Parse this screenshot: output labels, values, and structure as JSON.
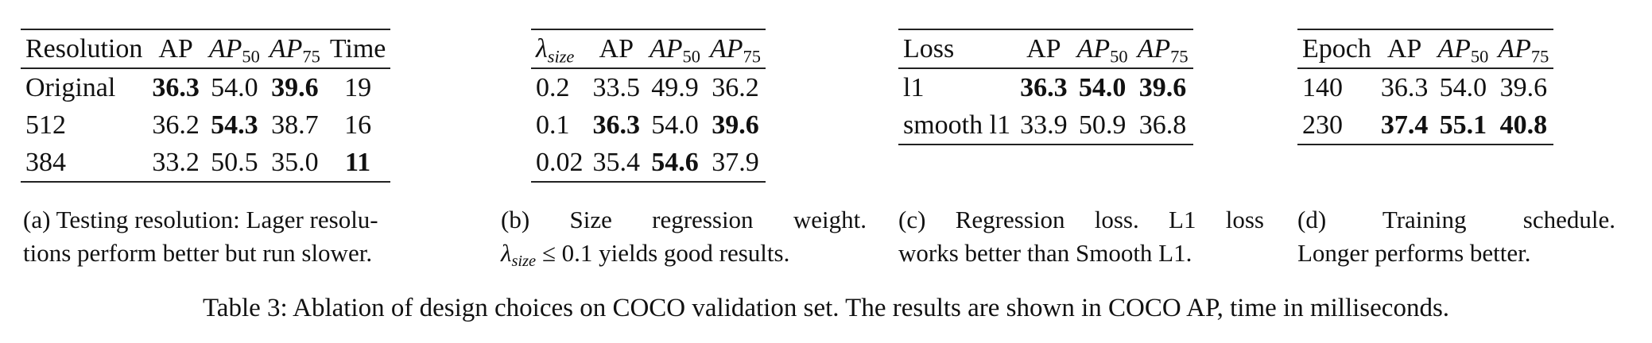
{
  "tables": [
    {
      "id": "a",
      "headers": [
        {
          "base": "Resolution",
          "sub": "",
          "italic": false
        },
        {
          "base": "AP",
          "sub": "",
          "italic": false
        },
        {
          "base": "AP",
          "sub": "50",
          "italic": true
        },
        {
          "base": "AP",
          "sub": "75",
          "italic": true
        },
        {
          "base": "Time",
          "sub": "",
          "italic": false
        }
      ],
      "rows": [
        [
          {
            "v": "Original",
            "b": false
          },
          {
            "v": "36.3",
            "b": true
          },
          {
            "v": "54.0",
            "b": false
          },
          {
            "v": "39.6",
            "b": true
          },
          {
            "v": "19",
            "b": false
          }
        ],
        [
          {
            "v": "512",
            "b": false
          },
          {
            "v": "36.2",
            "b": false
          },
          {
            "v": "54.3",
            "b": true
          },
          {
            "v": "38.7",
            "b": false
          },
          {
            "v": "16",
            "b": false
          }
        ],
        [
          {
            "v": "384",
            "b": false
          },
          {
            "v": "33.2",
            "b": false
          },
          {
            "v": "50.5",
            "b": false
          },
          {
            "v": "35.0",
            "b": false
          },
          {
            "v": "11",
            "b": true
          }
        ]
      ],
      "caption_lines": [
        "(a) Testing resolution: Lager resolu-",
        "tions perform better but run slower."
      ]
    },
    {
      "id": "b",
      "headers": [
        {
          "base": "λ",
          "sub": "size",
          "italic": true
        },
        {
          "base": "AP",
          "sub": "",
          "italic": false
        },
        {
          "base": "AP",
          "sub": "50",
          "italic": true
        },
        {
          "base": "AP",
          "sub": "75",
          "italic": true
        }
      ],
      "rows": [
        [
          {
            "v": "0.2",
            "b": false
          },
          {
            "v": "33.5",
            "b": false
          },
          {
            "v": "49.9",
            "b": false
          },
          {
            "v": "36.2",
            "b": false
          }
        ],
        [
          {
            "v": "0.1",
            "b": false
          },
          {
            "v": "36.3",
            "b": true
          },
          {
            "v": "54.0",
            "b": false
          },
          {
            "v": "39.6",
            "b": true
          }
        ],
        [
          {
            "v": "0.02",
            "b": false
          },
          {
            "v": "35.4",
            "b": false
          },
          {
            "v": "54.6",
            "b": true
          },
          {
            "v": "37.9",
            "b": false
          }
        ]
      ],
      "caption_line1": "(b) Size regression weight.",
      "caption_line2": {
        "lambda": "λ",
        "sub": "size",
        "rest": " ≤ 0.1 yields good results."
      }
    },
    {
      "id": "c",
      "headers": [
        {
          "base": "Loss",
          "sub": "",
          "italic": false
        },
        {
          "base": "AP",
          "sub": "",
          "italic": false
        },
        {
          "base": "AP",
          "sub": "50",
          "italic": true
        },
        {
          "base": "AP",
          "sub": "75",
          "italic": true
        }
      ],
      "rows": [
        [
          {
            "v": "l1",
            "b": false
          },
          {
            "v": "36.3",
            "b": true
          },
          {
            "v": "54.0",
            "b": true
          },
          {
            "v": "39.6",
            "b": true
          }
        ],
        [
          {
            "v": "smooth l1",
            "b": false
          },
          {
            "v": "33.9",
            "b": false
          },
          {
            "v": "50.9",
            "b": false
          },
          {
            "v": "36.8",
            "b": false
          }
        ]
      ],
      "caption_lines": [
        "(c) Regression loss. L1 loss",
        "works better than Smooth L1."
      ]
    },
    {
      "id": "d",
      "headers": [
        {
          "base": "Epoch",
          "sub": "",
          "italic": false
        },
        {
          "base": "AP",
          "sub": "",
          "italic": false
        },
        {
          "base": "AP",
          "sub": "50",
          "italic": true
        },
        {
          "base": "AP",
          "sub": "75",
          "italic": true
        }
      ],
      "rows": [
        [
          {
            "v": "140",
            "b": false
          },
          {
            "v": "36.3",
            "b": false
          },
          {
            "v": "54.0",
            "b": false
          },
          {
            "v": "39.6",
            "b": false
          }
        ],
        [
          {
            "v": "230",
            "b": false
          },
          {
            "v": "37.4",
            "b": true
          },
          {
            "v": "55.1",
            "b": true
          },
          {
            "v": "40.8",
            "b": true
          }
        ]
      ],
      "caption_lines": [
        "(d) Training schedule.",
        "Longer performs better."
      ]
    }
  ],
  "main_caption": "Table 3: Ablation of design choices on COCO validation set. The results are shown in COCO AP, time in milliseconds."
}
